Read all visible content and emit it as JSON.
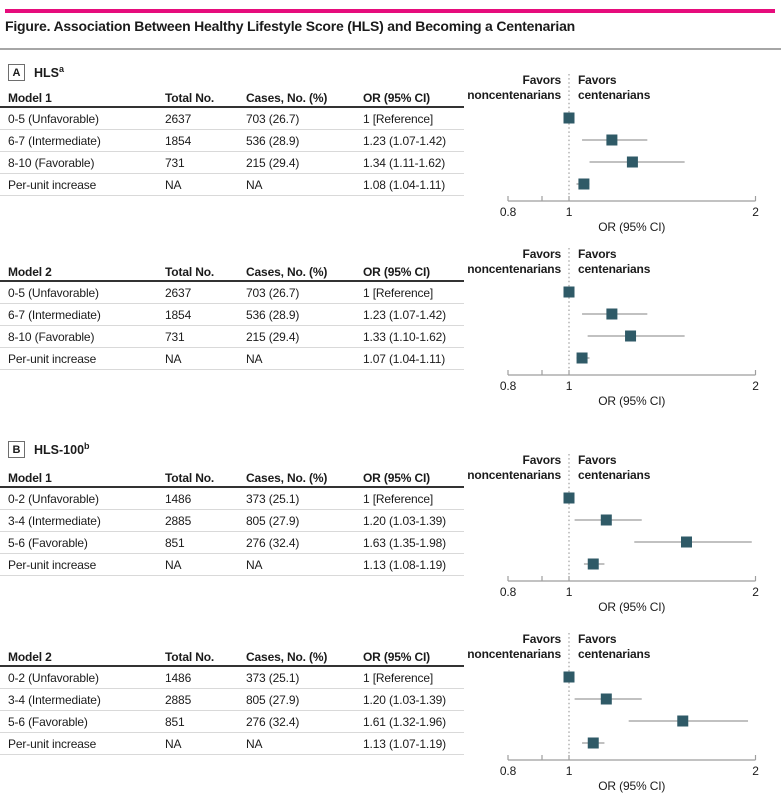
{
  "figure_title": "Figure. Association Between Healthy Lifestyle Score (HLS) and Becoming a Centenarian",
  "colors": {
    "accent_bar": "#E60C7C",
    "marker": "#2F5A67",
    "ci_line": "#9C9C9C",
    "axis": "#9E9E9E",
    "reference_dotted": "#8C8C8C",
    "header_rule": "#333333",
    "row_rule": "#D9D9D9",
    "title_rule": "#A6A6A6",
    "text": "#1B1B1B"
  },
  "panels": [
    {
      "letter": "A",
      "heading": "HLS",
      "heading_superscript": "a"
    },
    {
      "letter": "B",
      "heading": "HLS-100",
      "heading_superscript": "b"
    }
  ],
  "chart_data": [
    {
      "type": "scatter",
      "subtype": "forest-plot",
      "panel": "A",
      "model": "Model 1",
      "table_columns": [
        "Model 1",
        "Total No.",
        "Cases, No. (%)",
        "OR (95% CI)"
      ],
      "categories": [
        "0-5 (Unfavorable)",
        "6-7 (Intermediate)",
        "8-10 (Favorable)",
        "Per-unit increase"
      ],
      "total_no": [
        "2637",
        "1854",
        "731",
        "NA"
      ],
      "cases_no_pct": [
        "703 (26.7)",
        "536 (28.9)",
        "215 (29.4)",
        "NA"
      ],
      "or_text": [
        "1 [Reference]",
        "1.23 (1.07-1.42)",
        "1.34 (1.11-1.62)",
        "1.08 (1.04-1.11)"
      ],
      "or": [
        1,
        1.23,
        1.34,
        1.08
      ],
      "ci_lo": [
        null,
        1.07,
        1.11,
        1.04
      ],
      "ci_hi": [
        null,
        1.42,
        1.62,
        1.11
      ],
      "xlim": [
        0.8,
        2
      ],
      "xticks": [
        0.8,
        0.9,
        1,
        2
      ],
      "xtick_labels": [
        "0.8",
        "",
        "1",
        "2"
      ],
      "xlabel": "OR (95% CI)",
      "reference_line": 1,
      "favors_left_line1": "Favors",
      "favors_left_line2": "noncentenarians",
      "favors_right_line1": "Favors",
      "favors_right_line2": "centenarians"
    },
    {
      "type": "scatter",
      "subtype": "forest-plot",
      "panel": "A",
      "model": "Model 2",
      "table_columns": [
        "Model 2",
        "Total No.",
        "Cases, No. (%)",
        "OR (95% CI)"
      ],
      "categories": [
        "0-5 (Unfavorable)",
        "6-7 (Intermediate)",
        "8-10 (Favorable)",
        "Per-unit increase"
      ],
      "total_no": [
        "2637",
        "1854",
        "731",
        "NA"
      ],
      "cases_no_pct": [
        "703 (26.7)",
        "536 (28.9)",
        "215 (29.4)",
        "NA"
      ],
      "or_text": [
        "1 [Reference]",
        "1.23 (1.07-1.42)",
        "1.33 (1.10-1.62)",
        "1.07 (1.04-1.11)"
      ],
      "or": [
        1,
        1.23,
        1.33,
        1.07
      ],
      "ci_lo": [
        null,
        1.07,
        1.1,
        1.04
      ],
      "ci_hi": [
        null,
        1.42,
        1.62,
        1.11
      ],
      "xlim": [
        0.8,
        2
      ],
      "xticks": [
        0.8,
        0.9,
        1,
        2
      ],
      "xtick_labels": [
        "0.8",
        "",
        "1",
        "2"
      ],
      "xlabel": "OR (95% CI)",
      "reference_line": 1,
      "favors_left_line1": "Favors",
      "favors_left_line2": "noncentenarians",
      "favors_right_line1": "Favors",
      "favors_right_line2": "centenarians"
    },
    {
      "type": "scatter",
      "subtype": "forest-plot",
      "panel": "B",
      "model": "Model 1",
      "table_columns": [
        "Model 1",
        "Total No.",
        "Cases, No. (%)",
        "OR (95% CI)"
      ],
      "categories": [
        "0-2 (Unfavorable)",
        "3-4 (Intermediate)",
        "5-6 (Favorable)",
        "Per-unit increase"
      ],
      "total_no": [
        "1486",
        "2885",
        "851",
        "NA"
      ],
      "cases_no_pct": [
        "373 (25.1)",
        "805 (27.9)",
        "276 (32.4)",
        "NA"
      ],
      "or_text": [
        "1 [Reference]",
        "1.20 (1.03-1.39)",
        "1.63 (1.35-1.98)",
        "1.13 (1.08-1.19)"
      ],
      "or": [
        1,
        1.2,
        1.63,
        1.13
      ],
      "ci_lo": [
        null,
        1.03,
        1.35,
        1.08
      ],
      "ci_hi": [
        null,
        1.39,
        1.98,
        1.19
      ],
      "xlim": [
        0.8,
        2
      ],
      "xticks": [
        0.8,
        0.9,
        1,
        2
      ],
      "xtick_labels": [
        "0.8",
        "",
        "1",
        "2"
      ],
      "xlabel": "OR (95% CI)",
      "reference_line": 1,
      "favors_left_line1": "Favors",
      "favors_left_line2": "noncentenarians",
      "favors_right_line1": "Favors",
      "favors_right_line2": "centenarians"
    },
    {
      "type": "scatter",
      "subtype": "forest-plot",
      "panel": "B",
      "model": "Model 2",
      "table_columns": [
        "Model 2",
        "Total No.",
        "Cases, No. (%)",
        "OR (95% CI)"
      ],
      "categories": [
        "0-2 (Unfavorable)",
        "3-4 (Intermediate)",
        "5-6 (Favorable)",
        "Per-unit increase"
      ],
      "total_no": [
        "1486",
        "2885",
        "851",
        "NA"
      ],
      "cases_no_pct": [
        "373 (25.1)",
        "805 (27.9)",
        "276 (32.4)",
        "NA"
      ],
      "or_text": [
        "1 [Reference]",
        "1.20 (1.03-1.39)",
        "1.61 (1.32-1.96)",
        "1.13 (1.07-1.19)"
      ],
      "or": [
        1,
        1.2,
        1.61,
        1.13
      ],
      "ci_lo": [
        null,
        1.03,
        1.32,
        1.07
      ],
      "ci_hi": [
        null,
        1.39,
        1.96,
        1.19
      ],
      "xlim": [
        0.8,
        2
      ],
      "xticks": [
        0.8,
        0.9,
        1,
        2
      ],
      "xtick_labels": [
        "0.8",
        "",
        "1",
        "2"
      ],
      "xlabel": "OR (95% CI)",
      "reference_line": 1,
      "favors_left_line1": "Favors",
      "favors_left_line2": "noncentenarians",
      "favors_right_line1": "Favors",
      "favors_right_line2": "centenarians"
    }
  ]
}
